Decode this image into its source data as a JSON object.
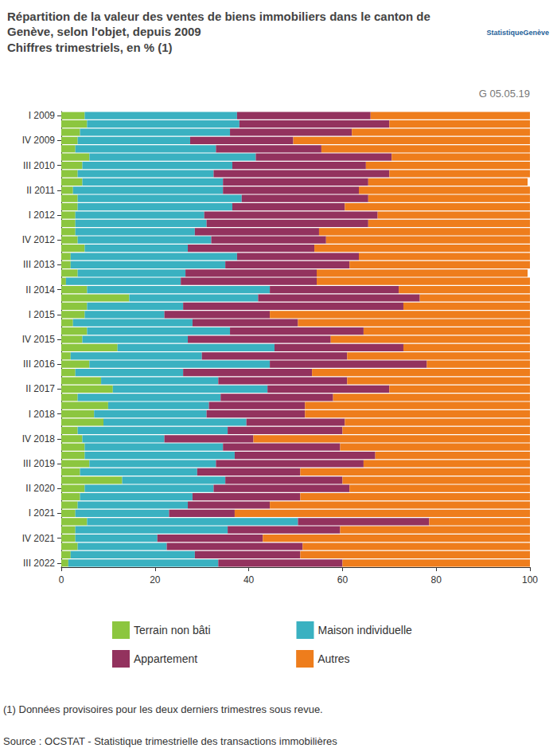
{
  "chart_data": {
    "type": "bar",
    "title": "Répartition de la valeur des ventes de biens immobiliers dans le canton de Genève, selon l'objet, depuis 2009",
    "subtitle": "Chiffres trimestriels, en % (1)",
    "annotations": {
      "code": "G 05.05.19",
      "logo": "StatistiqueGenève",
      "note": "(1) Données provisoires pour les deux derniers trimestres sous revue.",
      "source": "Source : OCSTAT - Statistique trimestrielle des transactions immobilières"
    },
    "orientation": "horizontal",
    "stacked": true,
    "grid": false,
    "data_labels": false,
    "legend": "bottom",
    "categories": [
      "I 2009",
      null,
      null,
      "IV 2009",
      null,
      null,
      "III 2010",
      null,
      null,
      "II 2011",
      null,
      null,
      "I 2012",
      null,
      null,
      "IV 2012",
      null,
      null,
      "III 2013",
      null,
      null,
      "II 2014",
      null,
      null,
      "I 2015",
      null,
      null,
      "IV 2015",
      null,
      null,
      "III 2016",
      null,
      null,
      "II 2017",
      null,
      null,
      "I 2018",
      null,
      null,
      "IV 2018",
      null,
      null,
      "III 2019",
      null,
      null,
      "II 2020",
      null,
      null,
      "I 2021",
      null,
      null,
      "IV 2021",
      null,
      null,
      "III 2022"
    ],
    "series": [
      {
        "name": "Terrain non bâti",
        "color": "#8cc63f",
        "values": [
          5,
          5.5,
          4,
          3.5,
          3,
          6,
          4.5,
          3.5,
          4.5,
          2.5,
          3.5,
          3.5,
          3,
          3,
          3,
          3.5,
          5,
          2,
          2,
          3.5,
          1,
          5.5,
          14.5,
          5.5,
          5,
          2.5,
          5.5,
          4.5,
          12,
          2,
          6,
          3,
          8.5,
          11,
          3.5,
          10,
          7,
          9,
          3.5,
          4.5,
          5,
          5,
          6,
          4,
          13,
          5,
          4,
          3.5,
          3,
          5.5,
          3,
          3,
          3.5,
          2,
          1.5
        ]
      },
      {
        "name": "Maison individuelle",
        "color": "#3ab1c1",
        "values": [
          32.5,
          32.5,
          32,
          24,
          30,
          35.5,
          32,
          29,
          30,
          32,
          35,
          33,
          27.5,
          28,
          25.5,
          28.5,
          22,
          35.5,
          33,
          23,
          24.5,
          39,
          27.5,
          20.5,
          17,
          25.5,
          30.5,
          22.5,
          33.5,
          28,
          38.5,
          23,
          25,
          33,
          30.5,
          21.5,
          24,
          30.5,
          32,
          17.5,
          29.5,
          32,
          27,
          25,
          22,
          27.5,
          24,
          23.5,
          20,
          45,
          32.5,
          17.5,
          19,
          26.5,
          32
        ]
      },
      {
        "name": "Appartement",
        "color": "#93325e",
        "values": [
          28.5,
          32,
          26,
          22,
          22.5,
          29,
          28.5,
          37.5,
          31,
          29,
          27,
          24,
          37,
          34.5,
          26.5,
          24.5,
          27,
          26,
          26.5,
          28,
          29,
          27.5,
          34.5,
          47,
          22.5,
          22.5,
          28.5,
          30.5,
          27.5,
          31,
          33.5,
          27.5,
          27.5,
          26,
          24,
          20.5,
          21,
          21,
          24.5,
          19,
          25,
          30,
          31.5,
          22,
          25,
          29,
          23,
          17.5,
          14,
          28,
          24,
          22.5,
          29,
          22.5,
          26.5
        ]
      },
      {
        "name": "Autres",
        "color": "#ee7d1c",
        "values": [
          34,
          30,
          38,
          50.5,
          44.5,
          29.5,
          35,
          30,
          34,
          36.5,
          34.5,
          39.5,
          32.5,
          34.5,
          45,
          43.5,
          46,
          36.5,
          38.5,
          45,
          45.5,
          28,
          23.5,
          27,
          55.5,
          49.5,
          35.5,
          42.5,
          27,
          39,
          22,
          46.5,
          39,
          30,
          42,
          48,
          48,
          39.5,
          40,
          59,
          40.5,
          33,
          35.5,
          49,
          40,
          38.5,
          49,
          55.5,
          63,
          21.5,
          40.5,
          57,
          48.5,
          49,
          40
        ]
      }
    ],
    "xlim": [
      0,
      100
    ],
    "xticks": [
      0,
      20,
      40,
      60,
      80,
      100
    ]
  }
}
